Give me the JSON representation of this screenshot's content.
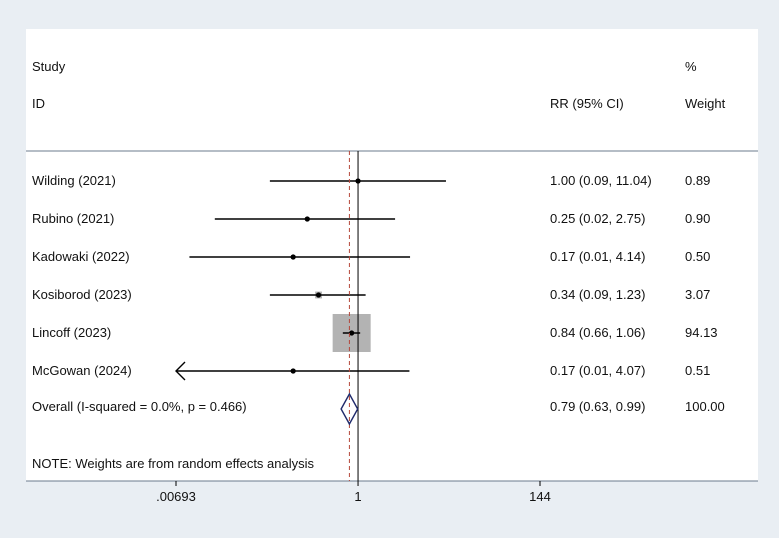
{
  "chart_data": {
    "type": "forest",
    "scale": "log",
    "header": {
      "study": "Study",
      "id": "ID",
      "effect": "RR (95% CI)",
      "weight_pct": "%",
      "weight": "Weight"
    },
    "null_value": 1,
    "overall_estimate_line": 0.79,
    "studies": [
      {
        "label": "Wilding (2021)",
        "rr": 1.0,
        "lo": 0.09,
        "hi": 11.04,
        "ci_text": "1.00 (0.09, 11.04)",
        "weight": 0.89,
        "weight_text": "0.89"
      },
      {
        "label": "Rubino (2021)",
        "rr": 0.25,
        "lo": 0.02,
        "hi": 2.75,
        "ci_text": "0.25 (0.02, 2.75)",
        "weight": 0.9,
        "weight_text": "0.90"
      },
      {
        "label": "Kadowaki (2022)",
        "rr": 0.17,
        "lo": 0.01,
        "hi": 4.14,
        "ci_text": "0.17 (0.01, 4.14)",
        "weight": 0.5,
        "weight_text": "0.50"
      },
      {
        "label": "Kosiborod (2023)",
        "rr": 0.34,
        "lo": 0.09,
        "hi": 1.23,
        "ci_text": "0.34 (0.09, 1.23)",
        "weight": 3.07,
        "weight_text": "3.07"
      },
      {
        "label": "Lincoff (2023)",
        "rr": 0.84,
        "lo": 0.66,
        "hi": 1.06,
        "ci_text": "0.84 (0.66, 1.06)",
        "weight": 94.13,
        "weight_text": "94.13"
      },
      {
        "label": "McGowan (2024)",
        "rr": 0.17,
        "lo": 0.00693,
        "hi": 4.07,
        "lo_truncated": true,
        "ci_text": "0.17 (0.01, 4.07)",
        "weight": 0.51,
        "weight_text": "0.51"
      }
    ],
    "overall": {
      "label": "Overall  (I-squared = 0.0%, p = 0.466)",
      "rr": 0.79,
      "lo": 0.63,
      "hi": 0.99,
      "ci_text": "0.79 (0.63, 0.99)",
      "weight_text": "100.00"
    },
    "note": "NOTE: Weights are from random effects analysis",
    "x_ticks": [
      {
        "value": 0.00693,
        "label": ".00693"
      },
      {
        "value": 1,
        "label": "1"
      },
      {
        "value": 144,
        "label": "144"
      }
    ],
    "xlim": [
      0.00693,
      144
    ],
    "colors": {
      "line": "#000000",
      "weight_box": "#b3b3b3",
      "diamond": "#1f2a6b",
      "overall_dashed": "#b5473a",
      "panel_border": "#6b7b8c"
    }
  }
}
